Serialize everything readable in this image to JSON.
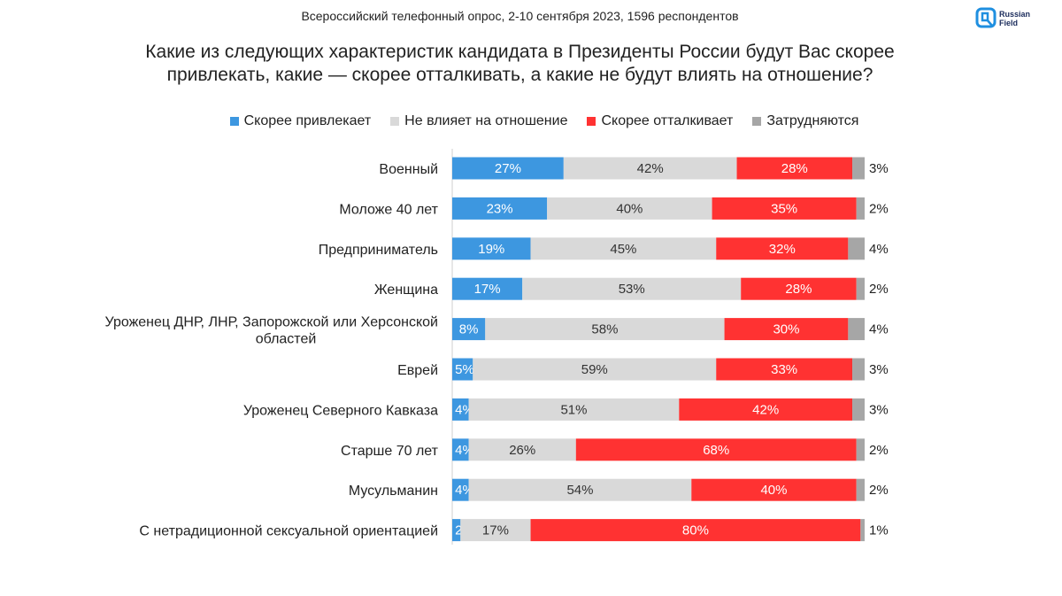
{
  "header": {
    "subtitle": "Всероссийский телефонный опрос, 2-10 сентября 2023, 1596 респондентов",
    "title_line1": "Какие из следующих характеристик кандидата в Президенты России будут Вас скорее",
    "title_line2": "привлекать, какие — скорее отталкивать, а какие не будут влиять на отношение?",
    "logo_line1": "Russian",
    "logo_line2": "Field"
  },
  "colors": {
    "attract": "#3d97e0",
    "neutral": "#d9d9d9",
    "repel": "#ff3232",
    "unsure": "#a6a6a6",
    "logo": "#1f8fe0"
  },
  "chart_data": {
    "type": "bar",
    "orientation": "horizontal",
    "stacked": true,
    "legend": "top",
    "categories": [
      "Военный",
      "Моложе 40 лет",
      "Предприниматель",
      "Женщина",
      "Уроженец ДНР, ЛНР, Запорожской или Херсонской областей",
      "Еврей",
      "Уроженец Северного Кавказа",
      "Старше 70 лет",
      "Мусульманин",
      "С нетрадиционной сексуальной ориентацией"
    ],
    "series": [
      {
        "name": "Скорее привлекает",
        "values": [
          27,
          23,
          19,
          17,
          8,
          5,
          4,
          4,
          4,
          2
        ]
      },
      {
        "name": "Не влияет на отношение",
        "values": [
          42,
          40,
          45,
          53,
          58,
          59,
          51,
          26,
          54,
          17
        ]
      },
      {
        "name": "Скорее отталкивает",
        "values": [
          28,
          35,
          32,
          28,
          30,
          33,
          42,
          68,
          40,
          80
        ]
      },
      {
        "name": "Затрудняются",
        "values": [
          3,
          2,
          4,
          2,
          4,
          3,
          3,
          2,
          2,
          1
        ]
      }
    ],
    "unit": "%"
  }
}
